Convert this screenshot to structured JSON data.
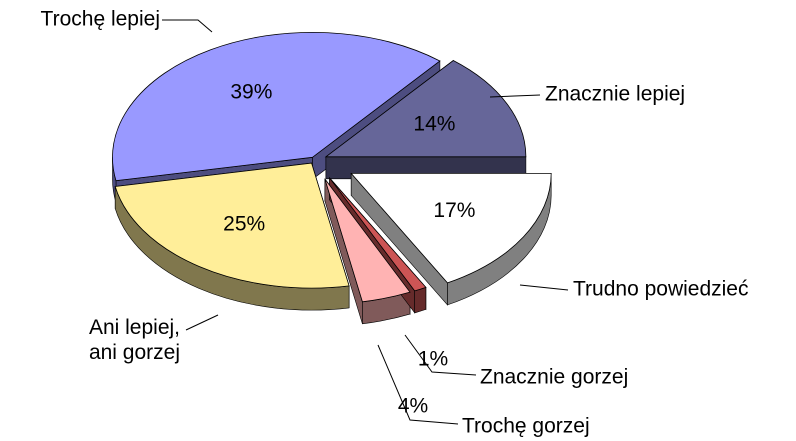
{
  "chart_data": {
    "type": "pie3d",
    "categories": [
      "Znacznie lepiej",
      "Trudno powiedzieć",
      "Znacznie gorzej",
      "Trochę gorzej",
      "Ani lepiej,\nani gorzej",
      "Trochę lepiej"
    ],
    "values": [
      14,
      17,
      1,
      4,
      25,
      39
    ],
    "value_labels": [
      "14%",
      "17%",
      "1%",
      "4%",
      "25%",
      "39%"
    ],
    "colors": [
      "#666699",
      "#ffffff",
      "#cc5555",
      "#ffb3b3",
      "#ffee99",
      "#9999ff"
    ]
  }
}
